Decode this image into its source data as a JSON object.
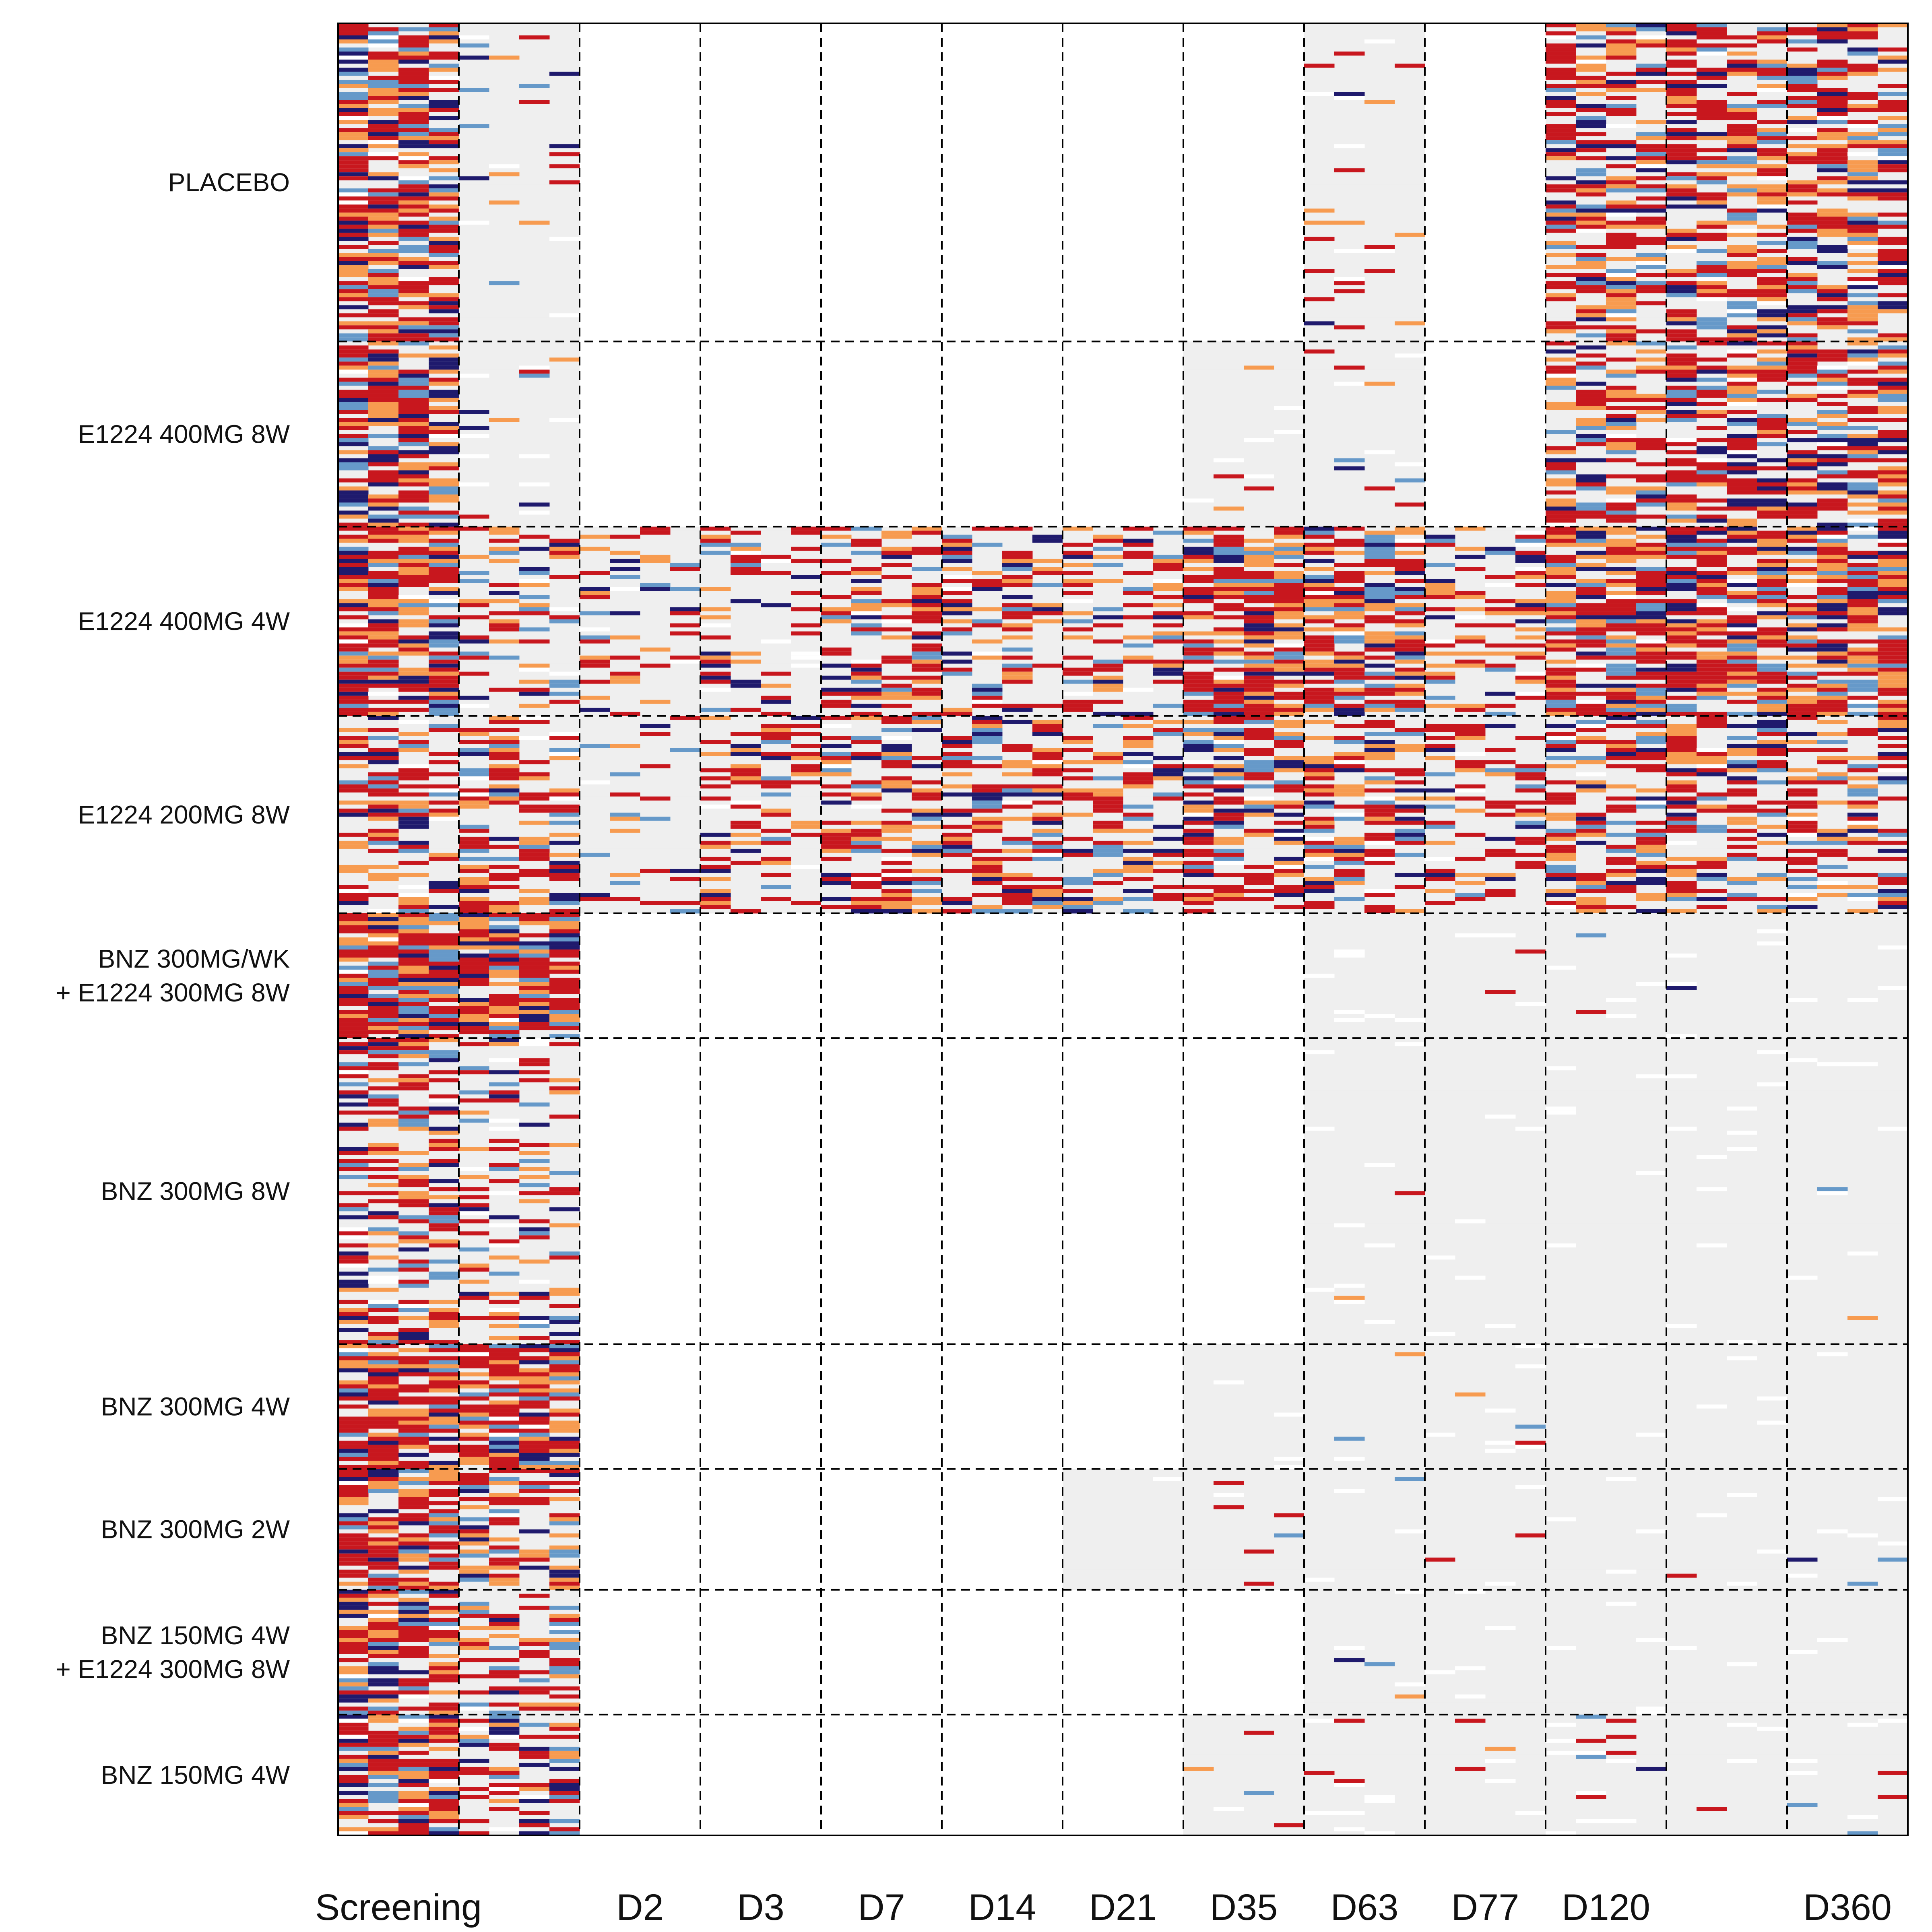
{
  "chart_data": {
    "type": "heatmap",
    "groups": [
      {
        "label_lines": [
          "PLACEBO"
        ],
        "rows": 79
      },
      {
        "label_lines": [
          "E1224 400MG 8W"
        ],
        "rows": 46
      },
      {
        "label_lines": [
          "E1224 400MG 4W"
        ],
        "rows": 47
      },
      {
        "label_lines": [
          "E1224 200MG 8W"
        ],
        "rows": 49
      },
      {
        "label_lines": [
          "BNZ 300MG/WK",
          "+ E1224 300MG 8W"
        ],
        "rows": 31
      },
      {
        "label_lines": [
          "BNZ 300MG 8W"
        ],
        "rows": 76
      },
      {
        "label_lines": [
          "BNZ 300MG 4W"
        ],
        "rows": 31
      },
      {
        "label_lines": [
          "BNZ 300MG 2W"
        ],
        "rows": 30
      },
      {
        "label_lines": [
          "BNZ 150MG 4W",
          "+ E1224 300MG 8W"
        ],
        "rows": 31
      },
      {
        "label_lines": [
          "BNZ 150MG 4W"
        ],
        "rows": 30
      }
    ],
    "timepoints": [
      "Screening",
      "",
      "D2",
      "D3",
      "D7",
      "D14",
      "D21",
      "D35",
      "D63",
      "D77",
      "D120",
      "",
      "D360"
    ],
    "x_axis_labels": [
      {
        "text": "Screening",
        "col": 0,
        "align": "center"
      },
      {
        "text": "D2",
        "col": 2,
        "align": "center"
      },
      {
        "text": "D3",
        "col": 3,
        "align": "center"
      },
      {
        "text": "D7",
        "col": 4,
        "align": "center"
      },
      {
        "text": "D14",
        "col": 5,
        "align": "center"
      },
      {
        "text": "D21",
        "col": 6,
        "align": "center"
      },
      {
        "text": "D35",
        "col": 7,
        "align": "center"
      },
      {
        "text": "D63",
        "col": 8,
        "align": "center"
      },
      {
        "text": "D77",
        "col": 9,
        "align": "center"
      },
      {
        "text": "D120",
        "col": 10,
        "align": "center"
      },
      {
        "text": "D360",
        "col": 12,
        "align": "center"
      }
    ],
    "colors": {
      "very_high": "#c8171e",
      "high": "#f79b50",
      "moderate": "#6699c9",
      "low": "#1f1a6d",
      "negative": "#efefef",
      "missing": "#ffffff"
    },
    "sampled_groups": [
      [
        1,
        1,
        0,
        0,
        0,
        0,
        0,
        0,
        1,
        0,
        1,
        1,
        1
      ],
      [
        1,
        1,
        0,
        0,
        0,
        0,
        0,
        1,
        1,
        0,
        1,
        1,
        1
      ],
      [
        1,
        1,
        1,
        1,
        1,
        1,
        1,
        1,
        1,
        1,
        1,
        1,
        1
      ],
      [
        1,
        1,
        1,
        1,
        1,
        1,
        1,
        1,
        1,
        1,
        1,
        1,
        1
      ],
      [
        1,
        1,
        0,
        0,
        0,
        0,
        0,
        0,
        1,
        1,
        1,
        1,
        1
      ],
      [
        1,
        1,
        0,
        0,
        0,
        0,
        0,
        0,
        1,
        1,
        1,
        1,
        1
      ],
      [
        1,
        1,
        0,
        0,
        0,
        0,
        0,
        1,
        1,
        1,
        1,
        1,
        1
      ],
      [
        1,
        1,
        0,
        0,
        0,
        0,
        1,
        1,
        1,
        1,
        1,
        1,
        1
      ],
      [
        1,
        1,
        0,
        0,
        0,
        0,
        0,
        0,
        1,
        1,
        1,
        1,
        1
      ],
      [
        1,
        1,
        0,
        0,
        0,
        0,
        0,
        1,
        1,
        1,
        1,
        1,
        1
      ]
    ],
    "positivity_by_group": [
      [
        0.75,
        0.05,
        0,
        0,
        0,
        0,
        0,
        0.05,
        0.06,
        0,
        0.55,
        0.6,
        0.6
      ],
      [
        0.75,
        0.05,
        0,
        0,
        0,
        0,
        0,
        0.02,
        0.05,
        0,
        0.55,
        0.65,
        0.65
      ],
      [
        0.75,
        0.3,
        0.25,
        0.25,
        0.45,
        0.45,
        0.35,
        0.75,
        0.75,
        0.35,
        0.75,
        0.8,
        0.8
      ],
      [
        0.45,
        0.45,
        0.15,
        0.35,
        0.5,
        0.5,
        0.5,
        0.55,
        0.55,
        0.3,
        0.5,
        0.55,
        0.5
      ],
      [
        0.85,
        0.85,
        0,
        0,
        0,
        0,
        0,
        0,
        0,
        0.01,
        0.01,
        0.01,
        0
      ],
      [
        0.55,
        0.3,
        0,
        0,
        0,
        0,
        0,
        0,
        0.01,
        0,
        0,
        0,
        0.01
      ],
      [
        0.8,
        0.8,
        0,
        0,
        0,
        0,
        0,
        0,
        0.01,
        0.04,
        0,
        0,
        0
      ],
      [
        0.7,
        0.55,
        0,
        0,
        0,
        0,
        0,
        0.02,
        0.02,
        0.03,
        0.01,
        0.02,
        0.02
      ],
      [
        0.75,
        0.45,
        0,
        0,
        0,
        0,
        0,
        0,
        0.02,
        0,
        0,
        0,
        0
      ],
      [
        0.8,
        0.55,
        0,
        0,
        0,
        0,
        0,
        0.04,
        0.04,
        0.04,
        0.04,
        0.04,
        0.04
      ]
    ],
    "grid": "dashed",
    "legend": "none"
  }
}
